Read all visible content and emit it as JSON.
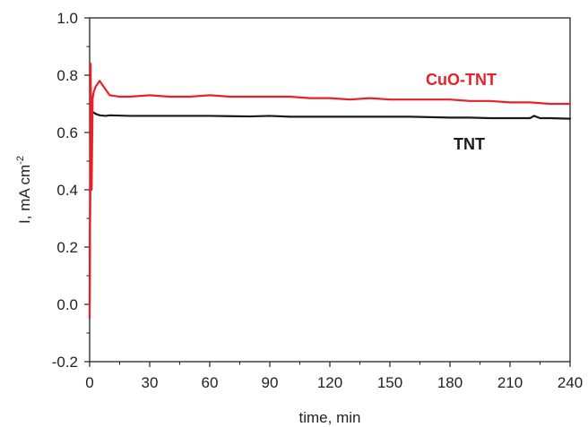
{
  "chart_data": {
    "type": "line",
    "xlabel": "time, min",
    "ylabel": "I, mA cm",
    "ylabel_sup": "-2",
    "xlim": [
      0,
      240
    ],
    "ylim": [
      -0.2,
      1.0
    ],
    "xticks": [
      0,
      30,
      60,
      90,
      120,
      150,
      180,
      210,
      240
    ],
    "xtick_labels": [
      "0",
      "30",
      "60",
      "90",
      "120",
      "150",
      "180",
      "210",
      "240"
    ],
    "yticks": [
      -0.2,
      0.0,
      0.2,
      0.4,
      0.6,
      0.8,
      1.0
    ],
    "ytick_labels": [
      "-0.2",
      "0.0",
      "0.2",
      "0.4",
      "0.6",
      "0.8",
      "1.0"
    ],
    "grid": false,
    "legend": "inline labels",
    "series": [
      {
        "name": "CuO-TNT",
        "color": "#e8202a",
        "x": [
          0,
          0.5,
          1,
          1.5,
          2,
          3,
          4,
          5,
          6,
          8,
          10,
          15,
          20,
          30,
          40,
          50,
          60,
          70,
          80,
          90,
          100,
          110,
          120,
          130,
          140,
          150,
          160,
          170,
          180,
          190,
          200,
          210,
          220,
          230,
          240
        ],
        "y": [
          -0.05,
          0.84,
          0.4,
          0.72,
          0.74,
          0.76,
          0.77,
          0.78,
          0.77,
          0.75,
          0.73,
          0.725,
          0.725,
          0.73,
          0.725,
          0.725,
          0.73,
          0.725,
          0.725,
          0.725,
          0.725,
          0.72,
          0.72,
          0.715,
          0.72,
          0.715,
          0.715,
          0.715,
          0.715,
          0.71,
          0.71,
          0.705,
          0.705,
          0.7,
          0.7
        ]
      },
      {
        "name": "TNT",
        "color": "#1a1a1a",
        "x": [
          0,
          0.5,
          1,
          2,
          3,
          5,
          8,
          10,
          20,
          30,
          40,
          60,
          80,
          90,
          100,
          120,
          140,
          160,
          180,
          190,
          200,
          210,
          220,
          222,
          225,
          230,
          240
        ],
        "y": [
          0.0,
          0.68,
          0.67,
          0.67,
          0.665,
          0.66,
          0.658,
          0.66,
          0.658,
          0.658,
          0.658,
          0.658,
          0.656,
          0.658,
          0.655,
          0.655,
          0.655,
          0.655,
          0.652,
          0.652,
          0.65,
          0.65,
          0.65,
          0.658,
          0.65,
          0.65,
          0.648
        ]
      }
    ]
  }
}
